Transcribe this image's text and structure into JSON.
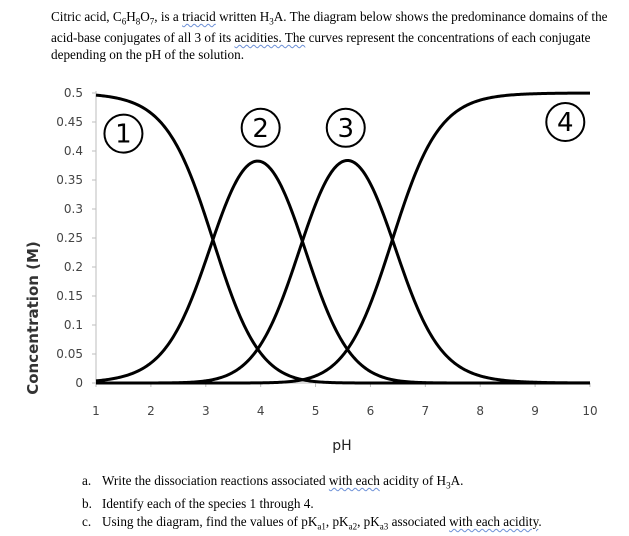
{
  "intro": {
    "formula_name": "Citric acid, ",
    "formula_C": "C",
    "formula_6": "6",
    "formula_H": "H",
    "formula_8": "8",
    "formula_O": "O",
    "formula_7": "7",
    "is_a": ", is a ",
    "triacid": "triacid",
    "written": " written H",
    "sub3": "3",
    "A_sentence": "A. The diagram below shows the predominance domains of the acid-base conjugates of all 3 of its ",
    "acidities": "acidities. The",
    "rest": " curves represent the concentrations of each conjugate depending on the pH of the solution."
  },
  "chart_data": {
    "type": "line",
    "xlabel": "pH",
    "ylabel": "Concentration (M)",
    "xlim": [
      1,
      10
    ],
    "ylim": [
      0,
      0.5
    ],
    "x_ticks": [
      "1",
      "2",
      "3",
      "4",
      "5",
      "6",
      "7",
      "8",
      "9",
      "10"
    ],
    "y_ticks": [
      "0",
      "0.05",
      "0.1",
      "0.15",
      "0.2",
      "0.25",
      "0.3",
      "0.35",
      "0.4",
      "0.45",
      "0.5"
    ],
    "total_concentration": 0.5,
    "pKa": [
      3.13,
      4.76,
      6.4
    ],
    "series": [
      {
        "name": "1",
        "label_pH": 1.5,
        "label_conc": 0.43
      },
      {
        "name": "2",
        "label_pH": 4.0,
        "label_conc": 0.44
      },
      {
        "name": "3",
        "label_pH": 5.55,
        "label_conc": 0.44
      },
      {
        "name": "4",
        "label_pH": 9.55,
        "label_conc": 0.45
      }
    ],
    "grid": false
  },
  "questions": [
    {
      "marker": "a.",
      "parts": [
        "Write the dissociation reactions associated ",
        "with each",
        " acidity of H",
        "3",
        "A."
      ]
    },
    {
      "marker": "b.",
      "parts": [
        "Identify each of the species 1 through 4."
      ]
    },
    {
      "marker": "c.",
      "parts": [
        "Using the diagram, find the values of pK",
        "a1",
        ", pK",
        "a2",
        ", pK",
        "a3",
        " associated ",
        "with each acidity",
        "."
      ]
    }
  ]
}
